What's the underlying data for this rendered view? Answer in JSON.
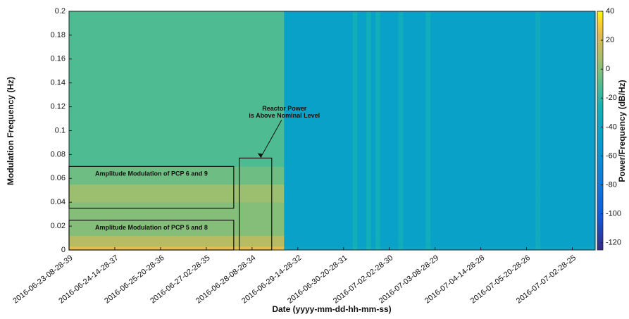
{
  "chart_data": {
    "type": "spectrogram",
    "xlabel": "Date (yyyy-mm-dd-hh-mm-ss)",
    "ylabel": "Modulation Frequency (Hz)",
    "colorbar_label": "Power/Frequency (dB/Hz)",
    "categories": [
      "2016-06-23-08-28-39",
      "2016-06-24-14-28-37",
      "2016-06-25-20-28-36",
      "2016-06-27-02-28-35",
      "2016-06-28-08-28-34",
      "2016-06-29-14-28-32",
      "2016-06-30-20-28-31",
      "2016-07-02-02-28-30",
      "2016-07-03-08-28-29",
      "2016-07-04-14-28-28",
      "2016-07-05-20-28-26",
      "2016-07-07-02-28-25"
    ],
    "xlim": [
      0,
      11.5
    ],
    "ylim": [
      0,
      0.2
    ],
    "yticks": [
      0,
      0.02,
      0.04,
      0.06,
      0.08,
      0.1,
      0.12,
      0.14,
      0.16,
      0.18,
      0.2
    ],
    "clim": [
      -125,
      40
    ],
    "cticks": [
      -120,
      -100,
      -80,
      -60,
      -40,
      -20,
      0,
      20,
      40
    ],
    "time_edges": [
      0,
      4.7,
      6.2,
      6.3,
      6.5,
      6.6,
      6.7,
      6.8,
      6.9,
      7.0,
      7.2,
      7.3,
      7.7,
      7.8,
      7.9,
      8.0,
      10.2,
      10.3,
      11.5
    ],
    "freq_edges": [
      0,
      0.003,
      0.012,
      0.04,
      0.055,
      0.07,
      0.2
    ],
    "power": [
      [
        25,
        -40,
        -25,
        -40,
        -25,
        -40,
        -25,
        -40,
        -40,
        -40,
        -28,
        -40,
        -40,
        -28,
        -40,
        -40,
        -30,
        -40
      ],
      [
        12,
        -45,
        -30,
        -45,
        -30,
        -45,
        -30,
        -45,
        -45,
        -45,
        -32,
        -45,
        -45,
        -32,
        -45,
        -45,
        -35,
        -45
      ],
      [
        0,
        -45,
        -30,
        -45,
        -30,
        -45,
        -30,
        -45,
        -45,
        -45,
        -32,
        -45,
        -45,
        -32,
        -45,
        -45,
        -35,
        -45
      ],
      [
        5,
        -45,
        -30,
        -45,
        -30,
        -45,
        -30,
        -45,
        -45,
        -45,
        -32,
        -45,
        -45,
        -32,
        -45,
        -45,
        -35,
        -45
      ],
      [
        -5,
        -45,
        -30,
        -45,
        -30,
        -45,
        -30,
        -45,
        -45,
        -45,
        -32,
        -45,
        -45,
        -32,
        -45,
        -45,
        -35,
        -45
      ],
      [
        -12,
        -45,
        -30,
        -45,
        -30,
        -45,
        -30,
        -45,
        -45,
        -45,
        -32,
        -45,
        -45,
        -32,
        -45,
        -45,
        -35,
        -45
      ]
    ],
    "annotations": [
      {
        "text": [
          "Amplitude Modulation of PCP 6 and 9"
        ],
        "x": [
          0,
          3.6
        ],
        "y": [
          0.035,
          0.07
        ]
      },
      {
        "text": [
          "Amplitude Modulation of PCP 5 and 8"
        ],
        "x": [
          0,
          3.6
        ],
        "y": [
          0,
          0.025
        ]
      },
      {
        "text": [
          "Reactor Power",
          "is Above Nominal Level"
        ],
        "x": [
          3.72,
          4.43
        ],
        "y": [
          0,
          0.077
        ]
      }
    ]
  }
}
